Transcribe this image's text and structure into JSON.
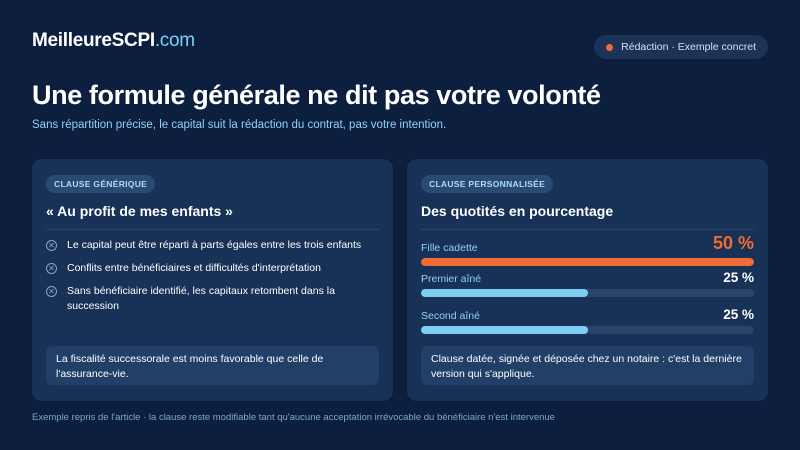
{
  "header": {
    "logo_main": "MeilleureSCPI",
    "logo_domain": ".com",
    "badge": "Rédaction · Exemple concret",
    "title": "Une formule générale ne dit pas votre volonté",
    "subtitle": "Sans répartition précise, le capital suit la rédaction du contrat, pas votre intention."
  },
  "left_card": {
    "tag": "CLAUSE GÉNÉRIQUE",
    "title": "« Au profit de mes enfants »",
    "bullets": [
      "Le capital peut être réparti à parts égales entre les trois enfants",
      "Conflits entre bénéficiaires et difficultés d'interprétation",
      "Sans bénéficiaire identifié, les capitaux retombent dans la succession"
    ],
    "note": "La fiscalité successorale est moins favorable que celle de l'assurance-vie."
  },
  "right_card": {
    "tag": "CLAUSE PERSONNALISÉE",
    "title": "Des quotités en pourcentage",
    "allocations": [
      {
        "label": "Fille cadette",
        "value": "50 %",
        "fraction": 1.0,
        "color": "#f26a35",
        "highlight": true
      },
      {
        "label": "Premier aîné",
        "value": "25 %",
        "fraction": 0.5,
        "color": "#7fcff5",
        "highlight": false
      },
      {
        "label": "Second aîné",
        "value": "25 %",
        "fraction": 0.5,
        "color": "#7fcff5",
        "highlight": false
      }
    ],
    "note": "Clause datée, signée et déposée chez un notaire : c'est la dernière version qui s'applique."
  },
  "footer": "Exemple repris de l'article · la clause reste modifiable tant qu'aucune acceptation irrévocable du bénéficiaire n'est intervenue",
  "colors": {
    "background": "#0c1f3f",
    "card": "#183156",
    "accent": "#f26a35",
    "light_blue": "#7fcff5"
  }
}
